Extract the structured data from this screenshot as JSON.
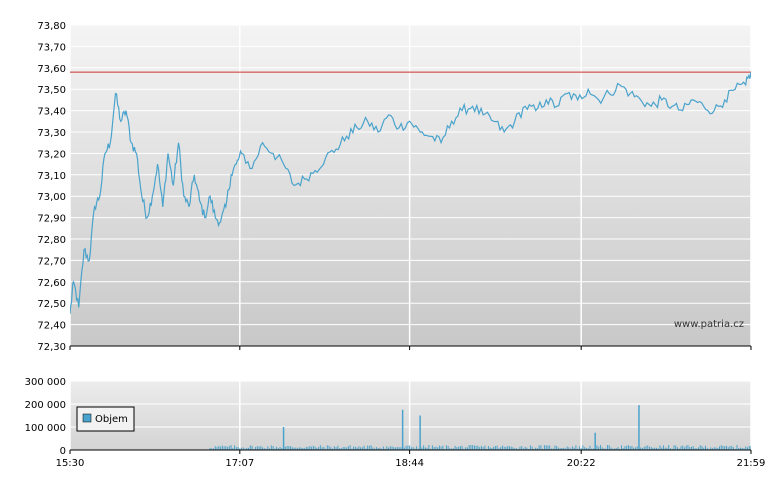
{
  "chart_data": [
    {
      "type": "line",
      "ylim": [
        72.3,
        73.8
      ],
      "y_ticks": [
        "72,30",
        "72,40",
        "72,50",
        "72,60",
        "72,70",
        "72,80",
        "72,90",
        "73,00",
        "73,10",
        "73,20",
        "73,30",
        "73,40",
        "73,50",
        "73,60",
        "73,70",
        "73,80"
      ],
      "x_ticks": [
        "15:30",
        "17:07",
        "18:44",
        "20:22",
        "21:59"
      ],
      "reference_line": {
        "value": 73.58,
        "color": "#cc3333"
      },
      "line_color": "#4aa3cc",
      "grid": true,
      "watermark": "www.patria.cz",
      "series": [
        {
          "x": [
            "15:30",
            "15:32",
            "15:35",
            "15:38",
            "15:41",
            "15:44",
            "15:47",
            "15:50",
            "15:53",
            "15:56",
            "15:59",
            "16:02",
            "16:05",
            "16:08",
            "16:11",
            "16:14",
            "16:17",
            "16:20",
            "16:23",
            "16:26",
            "16:29",
            "16:32",
            "16:35",
            "16:38",
            "16:41",
            "16:44",
            "16:47",
            "16:50",
            "16:53",
            "16:56",
            "16:59",
            "17:02",
            "17:05",
            "17:08",
            "17:14",
            "17:20",
            "17:26",
            "17:32",
            "17:38",
            "17:44",
            "17:50",
            "17:56",
            "18:02",
            "18:08",
            "18:14",
            "18:20",
            "18:26",
            "18:32",
            "18:38",
            "18:44",
            "18:50",
            "18:56",
            "19:02",
            "19:08",
            "19:14",
            "19:20",
            "19:26",
            "19:32",
            "19:38",
            "19:44",
            "19:50",
            "19:56",
            "20:02",
            "20:08",
            "20:14",
            "20:20",
            "20:26",
            "20:32",
            "20:38",
            "20:44",
            "20:50",
            "20:56",
            "21:02",
            "21:08",
            "21:14",
            "21:20",
            "21:26",
            "21:32",
            "21:38",
            "21:44",
            "21:50",
            "21:56",
            "21:59"
          ],
          "values": [
            72.45,
            72.6,
            72.48,
            72.75,
            72.7,
            72.95,
            73.0,
            73.2,
            73.25,
            73.48,
            73.35,
            73.4,
            73.25,
            73.2,
            73.0,
            72.9,
            73.0,
            73.15,
            72.95,
            73.2,
            73.05,
            73.25,
            73.0,
            72.95,
            73.1,
            72.98,
            72.9,
            73.0,
            72.9,
            72.88,
            72.95,
            73.1,
            73.15,
            73.2,
            73.13,
            73.25,
            73.2,
            73.15,
            73.05,
            73.08,
            73.12,
            73.18,
            73.22,
            73.28,
            73.32,
            73.35,
            73.3,
            73.38,
            73.32,
            73.35,
            73.3,
            73.28,
            73.25,
            73.35,
            73.4,
            73.42,
            73.38,
            73.35,
            73.3,
            73.35,
            73.42,
            73.4,
            73.45,
            73.42,
            73.48,
            73.45,
            73.5,
            73.45,
            73.48,
            73.52,
            73.48,
            73.45,
            73.42,
            73.45,
            73.42,
            73.4,
            73.45,
            73.42,
            73.4,
            73.45,
            73.5,
            73.52,
            73.58
          ]
        }
      ]
    },
    {
      "type": "bar",
      "ylim": [
        0,
        300000
      ],
      "y_ticks": [
        "0",
        "100 000",
        "200 000",
        "300 000"
      ],
      "x_ticks": [
        "15:30",
        "17:07",
        "18:44",
        "20:22",
        "21:59"
      ],
      "bar_color": "#4aa3cc",
      "grid": true,
      "legend": {
        "label": "Objem",
        "position": "left"
      },
      "series": [
        {
          "name": "Objem",
          "x": [
            "17:32",
            "18:40",
            "18:50",
            "20:30",
            "20:55"
          ],
          "values": [
            100000,
            175000,
            150000,
            75000,
            195000
          ]
        }
      ]
    }
  ]
}
